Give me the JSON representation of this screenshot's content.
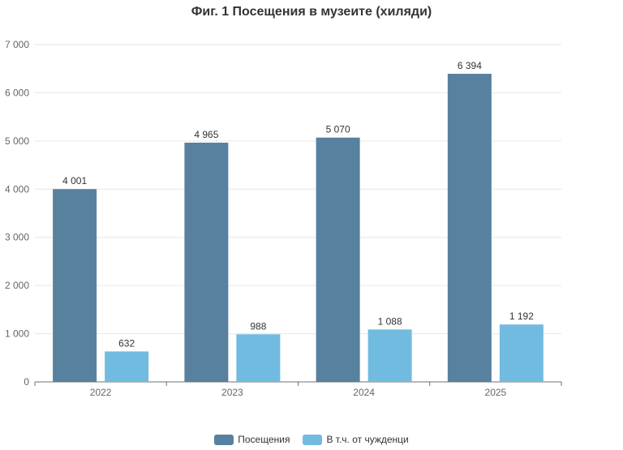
{
  "chart_data": {
    "type": "bar",
    "title": "Фиг. 1 Посещения в музеите (хиляди)",
    "categories": [
      "2022",
      "2023",
      "2024",
      "2025"
    ],
    "series": [
      {
        "name": "Посещения",
        "color": "#58819f",
        "values": [
          4001,
          4965,
          5070,
          6394
        ],
        "labels": [
          "4 001",
          "4 965",
          "5 070",
          "6 394"
        ]
      },
      {
        "name": "В т.ч. от чужденци",
        "color": "#72bbe0",
        "values": [
          632,
          988,
          1088,
          1192
        ],
        "labels": [
          "632",
          "988",
          "1 088",
          "1 192"
        ]
      }
    ],
    "ylim": [
      0,
      7000
    ],
    "yticks": [
      0,
      1000,
      2000,
      3000,
      4000,
      5000,
      6000,
      7000
    ],
    "ytick_labels": [
      "0",
      "1 000",
      "2 000",
      "3 000",
      "4 000",
      "5 000",
      "6 000",
      "7 000"
    ],
    "xlabel": "",
    "ylabel": "",
    "grid": true,
    "legend_position": "bottom"
  }
}
